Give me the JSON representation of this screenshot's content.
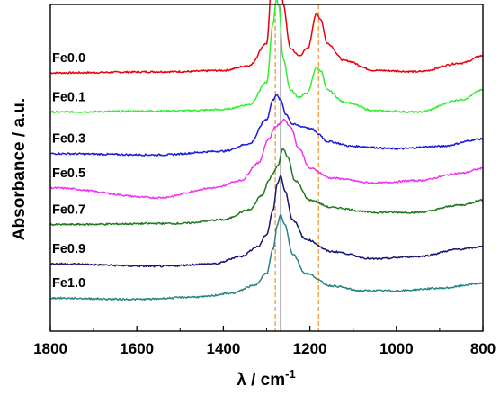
{
  "chart_data": {
    "type": "line",
    "xlabel_main": "λ / cm",
    "xlabel_sup": "-1",
    "ylabel": "Absorbance / a.u.",
    "xlim": [
      1800,
      800
    ],
    "x_ticks": [
      1800,
      1600,
      1400,
      1200,
      1000,
      800
    ],
    "reference_lines": [
      {
        "x": 1267,
        "style": "solid",
        "color": "#000000"
      },
      {
        "x": 1280,
        "style": "dashed",
        "color": "#f0902a"
      },
      {
        "x": 1180,
        "style": "dashed",
        "color": "#f0902a"
      }
    ],
    "series": [
      {
        "name": "Fe0.0",
        "color": "#e8000b",
        "baseline": 1.0,
        "points": [
          [
            1800,
            0.0
          ],
          [
            1500,
            0.005
          ],
          [
            1400,
            0.01
          ],
          [
            1340,
            0.03
          ],
          [
            1300,
            0.12
          ],
          [
            1285,
            0.45
          ],
          [
            1278,
            0.62
          ],
          [
            1272,
            0.6
          ],
          [
            1262,
            0.28
          ],
          [
            1245,
            0.1
          ],
          [
            1225,
            0.07
          ],
          [
            1205,
            0.1
          ],
          [
            1185,
            0.24
          ],
          [
            1175,
            0.22
          ],
          [
            1160,
            0.12
          ],
          [
            1120,
            0.05
          ],
          [
            1050,
            0.01
          ],
          [
            950,
            0.005
          ],
          [
            850,
            0.04
          ],
          [
            800,
            0.07
          ]
        ]
      },
      {
        "name": "Fe0.1",
        "color": "#33ee33",
        "baseline": 0.84,
        "points": [
          [
            1800,
            0.0
          ],
          [
            1500,
            0.005
          ],
          [
            1400,
            0.01
          ],
          [
            1340,
            0.03
          ],
          [
            1300,
            0.12
          ],
          [
            1285,
            0.36
          ],
          [
            1278,
            0.46
          ],
          [
            1272,
            0.44
          ],
          [
            1262,
            0.22
          ],
          [
            1245,
            0.09
          ],
          [
            1225,
            0.06
          ],
          [
            1205,
            0.08
          ],
          [
            1185,
            0.18
          ],
          [
            1175,
            0.17
          ],
          [
            1160,
            0.09
          ],
          [
            1120,
            0.04
          ],
          [
            1050,
            0.005
          ],
          [
            950,
            0.0
          ],
          [
            850,
            0.05
          ],
          [
            800,
            0.09
          ]
        ]
      },
      {
        "name": "Fe0.3",
        "color": "#1a1adb",
        "baseline": 0.67,
        "points": [
          [
            1800,
            0.0
          ],
          [
            1550,
            -0.005
          ],
          [
            1400,
            0.01
          ],
          [
            1340,
            0.04
          ],
          [
            1300,
            0.14
          ],
          [
            1285,
            0.22
          ],
          [
            1278,
            0.24
          ],
          [
            1268,
            0.22
          ],
          [
            1255,
            0.16
          ],
          [
            1240,
            0.12
          ],
          [
            1215,
            0.11
          ],
          [
            1195,
            0.1
          ],
          [
            1180,
            0.08
          ],
          [
            1160,
            0.05
          ],
          [
            1100,
            0.03
          ],
          [
            1000,
            0.02
          ],
          [
            900,
            0.03
          ],
          [
            800,
            0.06
          ]
        ]
      },
      {
        "name": "Fe0.5",
        "color": "#ee33ee",
        "baseline": 0.53,
        "points": [
          [
            1800,
            0.0
          ],
          [
            1550,
            -0.04
          ],
          [
            1420,
            0.0
          ],
          [
            1360,
            0.03
          ],
          [
            1320,
            0.1
          ],
          [
            1295,
            0.2
          ],
          [
            1280,
            0.25
          ],
          [
            1270,
            0.26
          ],
          [
            1260,
            0.28
          ],
          [
            1245,
            0.25
          ],
          [
            1225,
            0.16
          ],
          [
            1200,
            0.08
          ],
          [
            1150,
            0.04
          ],
          [
            1050,
            0.02
          ],
          [
            950,
            0.03
          ],
          [
            850,
            0.06
          ],
          [
            800,
            0.08
          ]
        ]
      },
      {
        "name": "Fe0.7",
        "color": "#1e7a1e",
        "baseline": 0.38,
        "points": [
          [
            1800,
            0.0
          ],
          [
            1500,
            0.005
          ],
          [
            1400,
            0.02
          ],
          [
            1340,
            0.06
          ],
          [
            1310,
            0.12
          ],
          [
            1295,
            0.18
          ],
          [
            1285,
            0.21
          ],
          [
            1275,
            0.24
          ],
          [
            1262,
            0.31
          ],
          [
            1252,
            0.28
          ],
          [
            1235,
            0.18
          ],
          [
            1200,
            0.1
          ],
          [
            1150,
            0.07
          ],
          [
            1050,
            0.05
          ],
          [
            950,
            0.05
          ],
          [
            850,
            0.08
          ],
          [
            800,
            0.1
          ]
        ]
      },
      {
        "name": "Fe0.9",
        "color": "#161670",
        "baseline": 0.22,
        "points": [
          [
            1800,
            0.0
          ],
          [
            1550,
            -0.01
          ],
          [
            1420,
            0.0
          ],
          [
            1360,
            0.03
          ],
          [
            1320,
            0.07
          ],
          [
            1300,
            0.12
          ],
          [
            1285,
            0.22
          ],
          [
            1275,
            0.33
          ],
          [
            1268,
            0.36
          ],
          [
            1258,
            0.3
          ],
          [
            1240,
            0.18
          ],
          [
            1210,
            0.1
          ],
          [
            1150,
            0.05
          ],
          [
            1050,
            0.02
          ],
          [
            950,
            0.03
          ],
          [
            850,
            0.06
          ],
          [
            800,
            0.07
          ]
        ]
      },
      {
        "name": "Fe1.0",
        "color": "#258585",
        "baseline": 0.08,
        "points": [
          [
            1800,
            0.0
          ],
          [
            1600,
            -0.005
          ],
          [
            1450,
            0.005
          ],
          [
            1380,
            0.02
          ],
          [
            1330,
            0.05
          ],
          [
            1300,
            0.1
          ],
          [
            1285,
            0.2
          ],
          [
            1275,
            0.3
          ],
          [
            1268,
            0.34
          ],
          [
            1258,
            0.3
          ],
          [
            1240,
            0.18
          ],
          [
            1210,
            0.1
          ],
          [
            1150,
            0.05
          ],
          [
            1080,
            0.03
          ],
          [
            1000,
            0.03
          ],
          [
            900,
            0.04
          ],
          [
            800,
            0.06
          ]
        ]
      }
    ]
  }
}
